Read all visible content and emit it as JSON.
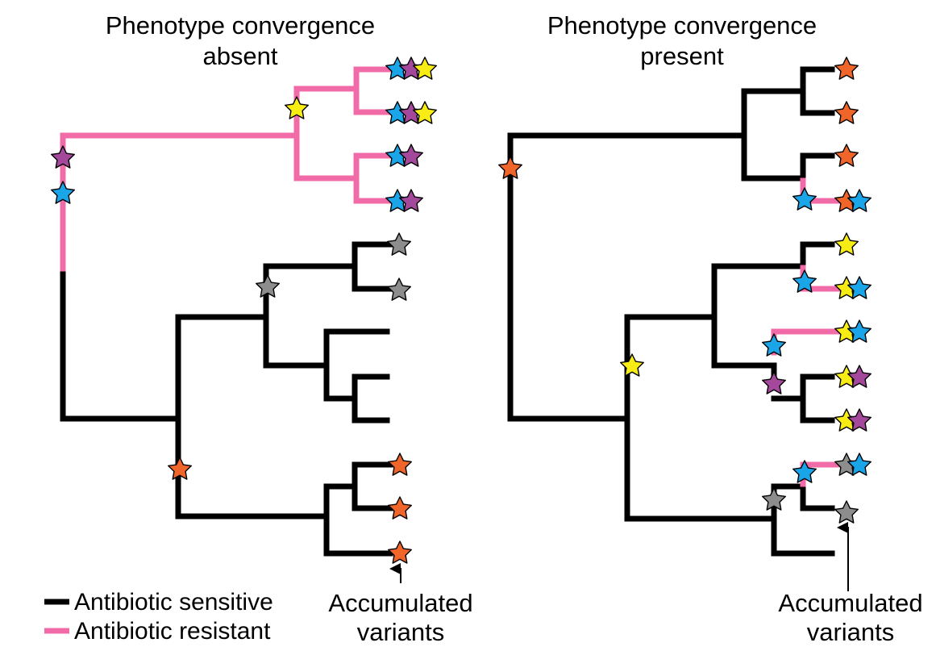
{
  "colors": {
    "sensitive": "#000000",
    "resistant": "#f06ba8",
    "purple": "#a3489b",
    "blue": "#1aa5e8",
    "yellow": "#f7ed14",
    "gray": "#8d8d8d",
    "orange": "#f0652a"
  },
  "left_panel": {
    "title_line1": "Phenotype convergence",
    "title_line2": "absent",
    "accumulated_line1": "Accumulated",
    "accumulated_line2": "variants"
  },
  "right_panel": {
    "title_line1": "Phenotype convergence",
    "title_line2": "present",
    "accumulated_line1": "Accumulated",
    "accumulated_line2": "variants"
  },
  "legend": {
    "items": [
      {
        "label": "Antibiotic sensitive",
        "color_key": "sensitive"
      },
      {
        "label": "Antibiotic resistant",
        "color_key": "resistant"
      }
    ]
  }
}
